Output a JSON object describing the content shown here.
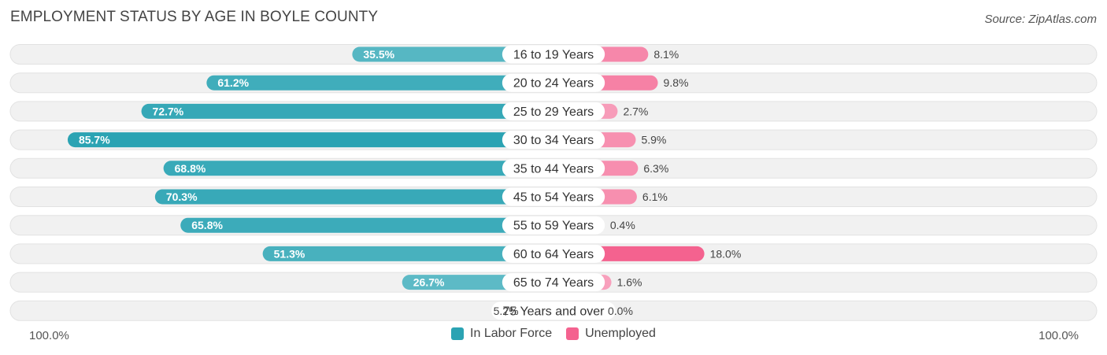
{
  "header": {
    "title": "EMPLOYMENT STATUS BY AGE IN BOYLE COUNTY",
    "source": "Source: ZipAtlas.com"
  },
  "axis": {
    "left_label": "100.0%",
    "right_label": "100.0%"
  },
  "legend": {
    "in_labor_force": "In Labor Force",
    "unemployed": "Unemployed"
  },
  "colors": {
    "labor_dark": "#2ba3b3",
    "labor_light": "#74c5cf",
    "unemp_dark": "#f4628f",
    "unemp_light": "#f8a6c0",
    "track": "#f1f1f1"
  },
  "chart_data": {
    "type": "bar",
    "title": "EMPLOYMENT STATUS BY AGE IN BOYLE COUNTY",
    "categories": [
      "16 to 19 Years",
      "20 to 24 Years",
      "25 to 29 Years",
      "30 to 34 Years",
      "35 to 44 Years",
      "45 to 54 Years",
      "55 to 59 Years",
      "60 to 64 Years",
      "65 to 74 Years",
      "75 Years and over"
    ],
    "series": [
      {
        "name": "In Labor Force",
        "values": [
          35.5,
          61.2,
          72.7,
          85.7,
          68.8,
          70.3,
          65.8,
          51.3,
          26.7,
          5.2
        ],
        "labels": [
          "35.5%",
          "61.2%",
          "72.7%",
          "85.7%",
          "68.8%",
          "70.3%",
          "65.8%",
          "51.3%",
          "26.7%",
          "5.2%"
        ]
      },
      {
        "name": "Unemployed",
        "values": [
          8.1,
          9.8,
          2.7,
          5.9,
          6.3,
          6.1,
          0.4,
          18.0,
          1.6,
          0.0
        ],
        "labels": [
          "8.1%",
          "9.8%",
          "2.7%",
          "5.9%",
          "6.3%",
          "6.1%",
          "0.4%",
          "18.0%",
          "1.6%",
          "0.0%"
        ]
      }
    ],
    "xlim": [
      -100,
      100
    ],
    "legend_position": "bottom-center"
  }
}
